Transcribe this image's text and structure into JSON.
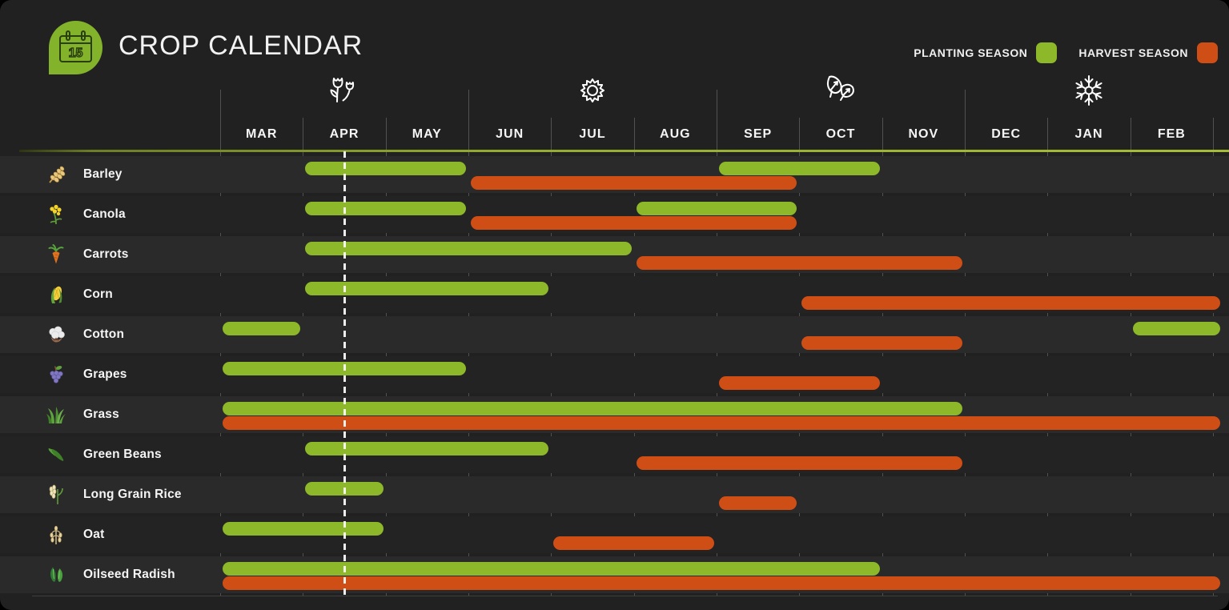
{
  "header": {
    "title": "CROP CALENDAR",
    "logo_day": "15"
  },
  "legend": {
    "planting_label": "PLANTING SEASON",
    "harvest_label": "HARVEST SEASON",
    "planting_color": "#8cb829",
    "harvest_color": "#cf4e15"
  },
  "months": [
    "MAR",
    "APR",
    "MAY",
    "JUN",
    "JUL",
    "AUG",
    "SEP",
    "OCT",
    "NOV",
    "DEC",
    "JAN",
    "FEB"
  ],
  "seasons": [
    {
      "name": "spring",
      "icon": "tulips-icon",
      "month_index": 1
    },
    {
      "name": "summer",
      "icon": "sun-icon",
      "month_index": 4
    },
    {
      "name": "autumn",
      "icon": "leaves-icon",
      "month_index": 7
    },
    {
      "name": "winter",
      "icon": "snowflake-icon",
      "month_index": 10
    }
  ],
  "today_marker": {
    "month_index": 1,
    "fraction": 0.5
  },
  "chart_data": {
    "type": "gantt",
    "categories": [
      "MAR",
      "APR",
      "MAY",
      "JUN",
      "JUL",
      "AUG",
      "SEP",
      "OCT",
      "NOV",
      "DEC",
      "JAN",
      "FEB"
    ],
    "series_meaning": {
      "planting": "Planting season month spans",
      "harvest": "Harvest season month spans"
    },
    "rows": [
      {
        "crop": "Barley",
        "icon": "barley",
        "planting": [
          [
            "APR",
            "MAY"
          ],
          [
            "SEP",
            "OCT"
          ]
        ],
        "harvest": [
          [
            "JUN",
            "SEP"
          ]
        ]
      },
      {
        "crop": "Canola",
        "icon": "canola",
        "planting": [
          [
            "APR",
            "MAY"
          ],
          [
            "AUG",
            "SEP"
          ]
        ],
        "harvest": [
          [
            "JUN",
            "SEP"
          ]
        ]
      },
      {
        "crop": "Carrots",
        "icon": "carrots",
        "planting": [
          [
            "APR",
            "JUL"
          ]
        ],
        "harvest": [
          [
            "AUG",
            "NOV"
          ]
        ]
      },
      {
        "crop": "Corn",
        "icon": "corn",
        "planting": [
          [
            "APR",
            "JUN"
          ]
        ],
        "harvest": [
          [
            "OCT",
            "FEB"
          ]
        ]
      },
      {
        "crop": "Cotton",
        "icon": "cotton",
        "planting": [
          [
            "MAR",
            "MAR"
          ],
          [
            "FEB",
            "FEB"
          ]
        ],
        "harvest": [
          [
            "OCT",
            "NOV"
          ]
        ]
      },
      {
        "crop": "Grapes",
        "icon": "grapes",
        "planting": [
          [
            "MAR",
            "MAY"
          ]
        ],
        "harvest": [
          [
            "SEP",
            "OCT"
          ]
        ]
      },
      {
        "crop": "Grass",
        "icon": "grass",
        "planting": [
          [
            "MAR",
            "NOV"
          ]
        ],
        "harvest": [
          [
            "MAR",
            "FEB"
          ]
        ]
      },
      {
        "crop": "Green Beans",
        "icon": "green-beans",
        "planting": [
          [
            "APR",
            "JUN"
          ]
        ],
        "harvest": [
          [
            "AUG",
            "NOV"
          ]
        ]
      },
      {
        "crop": "Long Grain Rice",
        "icon": "rice",
        "planting": [
          [
            "APR",
            "APR"
          ]
        ],
        "harvest": [
          [
            "SEP",
            "SEP"
          ]
        ]
      },
      {
        "crop": "Oat",
        "icon": "oat",
        "planting": [
          [
            "MAR",
            "APR"
          ]
        ],
        "harvest": [
          [
            "JUL",
            "AUG"
          ]
        ]
      },
      {
        "crop": "Oilseed Radish",
        "icon": "radish",
        "planting": [
          [
            "MAR",
            "OCT"
          ]
        ],
        "harvest": [
          [
            "MAR",
            "FEB"
          ]
        ]
      }
    ]
  }
}
